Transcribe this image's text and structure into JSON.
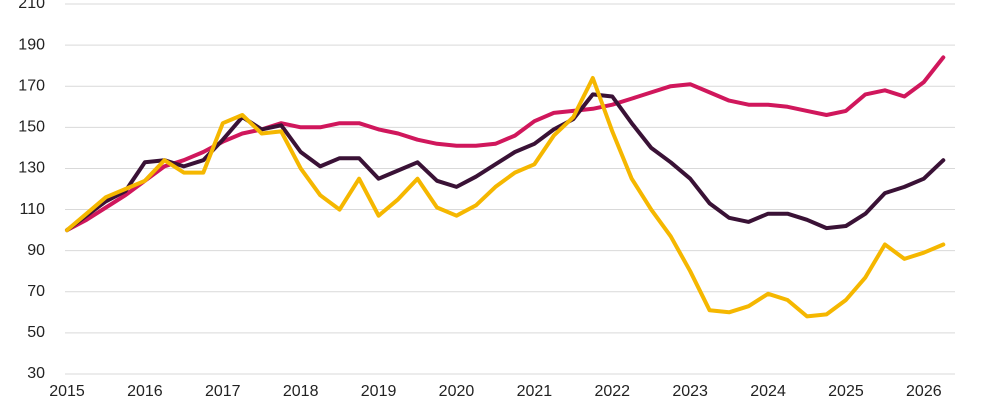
{
  "chart_data": {
    "type": "line",
    "x": [
      2015,
      2015.25,
      2015.5,
      2015.75,
      2016,
      2016.25,
      2016.5,
      2016.75,
      2017,
      2017.25,
      2017.5,
      2017.75,
      2018,
      2018.25,
      2018.5,
      2018.75,
      2019,
      2019.25,
      2019.5,
      2019.75,
      2020,
      2020.25,
      2020.5,
      2020.75,
      2021,
      2021.25,
      2021.5,
      2021.75,
      2022,
      2022.25,
      2022.5,
      2022.75,
      2023,
      2023.25,
      2023.5,
      2023.75,
      2024,
      2024.25,
      2024.5,
      2024.75,
      2025,
      2025.25,
      2025.5,
      2025.75,
      2026,
      2026.25
    ],
    "series": [
      {
        "color": "#d0175c",
        "values": [
          100,
          105,
          111,
          117,
          124,
          131,
          134,
          138,
          143,
          147,
          149,
          152,
          150,
          150,
          152,
          152,
          149,
          147,
          144,
          142,
          141,
          141,
          142,
          146,
          153,
          157,
          158,
          159,
          161,
          164,
          167,
          170,
          171,
          167,
          163,
          161,
          161,
          160,
          158,
          156,
          158,
          166,
          168,
          165,
          172,
          184
        ]
      },
      {
        "color": "#3a1236",
        "values": [
          100,
          107,
          114,
          119,
          133,
          134,
          131,
          134,
          144,
          155,
          149,
          151,
          138,
          131,
          135,
          135,
          125,
          129,
          133,
          124,
          121,
          126,
          132,
          138,
          142,
          149,
          154,
          166,
          165,
          152,
          140,
          133,
          125,
          113,
          106,
          104,
          108,
          108,
          105,
          101,
          102,
          108,
          118,
          121,
          125,
          134
        ]
      },
      {
        "color": "#f5b700",
        "values": [
          100,
          108,
          116,
          120,
          124,
          134,
          128,
          128,
          152,
          156,
          147,
          148,
          130,
          117,
          110,
          125,
          107,
          115,
          125,
          111,
          107,
          112,
          121,
          128,
          132,
          146,
          155,
          174,
          148,
          125,
          110,
          97,
          80,
          61,
          60,
          63,
          69,
          66,
          58,
          59,
          66,
          77,
          93,
          86,
          89,
          93
        ]
      }
    ],
    "xlim": [
      2015,
      2026.4
    ],
    "xticks": [
      2015,
      2016,
      2017,
      2018,
      2019,
      2020,
      2021,
      2022,
      2023,
      2024,
      2025,
      2026
    ],
    "ylim": [
      30,
      210
    ],
    "yticks": [
      30,
      50,
      70,
      90,
      110,
      130,
      150,
      170,
      190,
      210
    ],
    "grid": true
  }
}
